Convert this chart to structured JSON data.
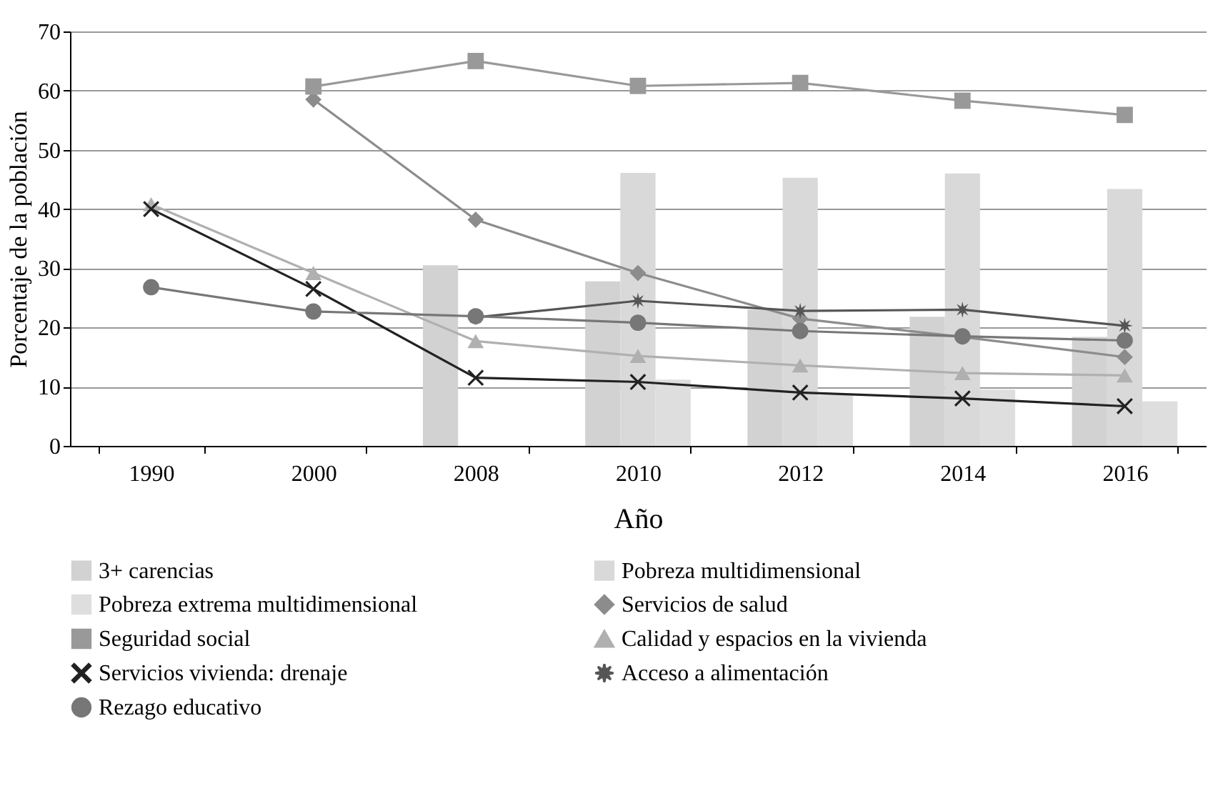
{
  "chart_data": {
    "type": "line",
    "xlabel": "Año",
    "ylabel": "Porcentaje de la población",
    "categories": [
      "1990",
      "2000",
      "2008",
      "2010",
      "2012",
      "2014",
      "2016"
    ],
    "ylim": [
      0,
      70
    ],
    "yticks": [
      0,
      10,
      20,
      30,
      40,
      50,
      60,
      70
    ],
    "grid": "y",
    "legend": "bottom",
    "line_style": "solid",
    "series": [
      {
        "name": "3+ carencias",
        "type": "bar",
        "color": "#d2d2d2",
        "values": [
          null,
          null,
          30.5,
          27.8,
          23.0,
          21.8,
          18.4
        ]
      },
      {
        "name": "Pobreza multidimensional",
        "type": "bar",
        "color": "#d9d9d9",
        "values": [
          null,
          null,
          null,
          46.1,
          45.3,
          46.0,
          43.4
        ]
      },
      {
        "name": "Pobreza extrema multidimensional",
        "type": "bar",
        "color": "#dedede",
        "values": [
          null,
          null,
          null,
          11.2,
          8.6,
          9.5,
          7.5
        ]
      },
      {
        "name": "Servicios de salud",
        "marker": "diamond",
        "color": "#8c8c8c",
        "values": [
          null,
          58.5,
          38.2,
          29.2,
          21.5,
          18.4,
          15.0
        ]
      },
      {
        "name": "Seguridad social",
        "marker": "square",
        "color": "#999999",
        "values": [
          null,
          60.7,
          65.0,
          60.8,
          61.3,
          58.3,
          55.9
        ]
      },
      {
        "name": "Calidad y espacios en la vivienda",
        "marker": "triangle",
        "color": "#b0b0b0",
        "values": [
          40.8,
          29.2,
          17.7,
          15.2,
          13.6,
          12.3,
          11.9
        ]
      },
      {
        "name": "Servicios vivienda: drenaje",
        "marker": "cross",
        "color": "#222222",
        "values": [
          40.0,
          26.5,
          11.5,
          10.8,
          9.0,
          8.0,
          6.7
        ]
      },
      {
        "name": "Acceso a alimentación",
        "marker": "star",
        "color": "#555555",
        "values": [
          null,
          null,
          21.7,
          24.5,
          22.8,
          23.0,
          20.3
        ]
      },
      {
        "name": "Rezago educativo",
        "marker": "circle",
        "color": "#777777",
        "values": [
          26.8,
          22.7,
          21.9,
          20.8,
          19.4,
          18.5,
          17.8
        ]
      }
    ]
  }
}
